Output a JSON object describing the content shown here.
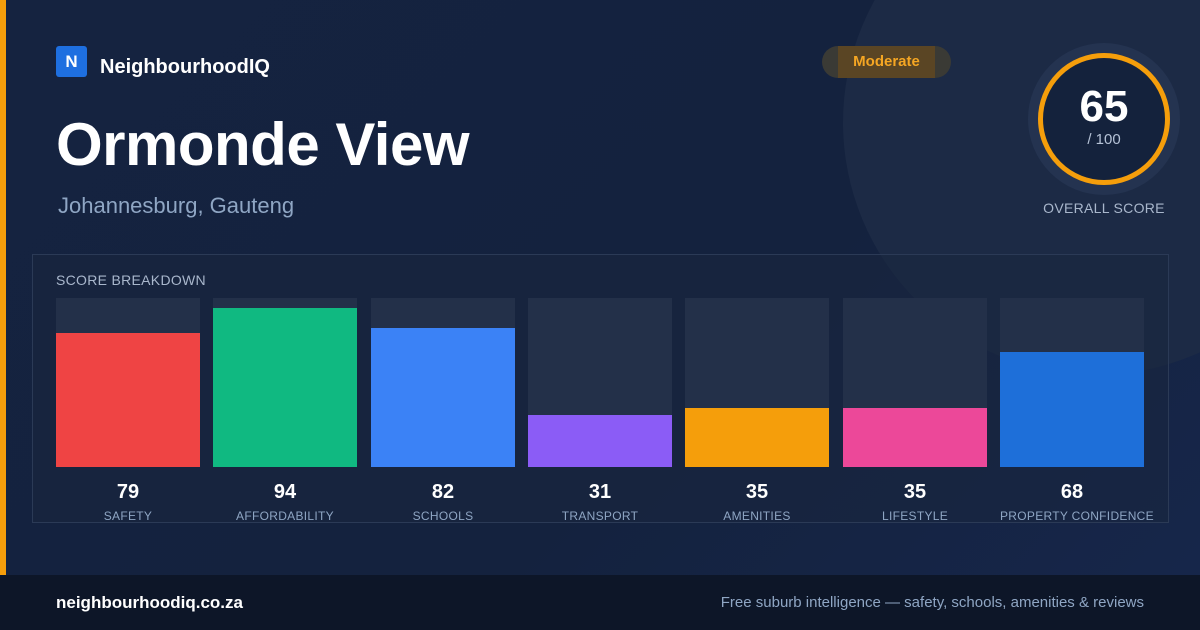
{
  "brand": {
    "logo_letter": "N",
    "name": "NeighbourhoodIQ"
  },
  "suburb": {
    "name": "Ormonde View",
    "location": "Johannesburg, Gauteng"
  },
  "badge": {
    "label": "Moderate",
    "color": "#f5a623"
  },
  "overall": {
    "score": "65",
    "max": "/ 100",
    "caption": "OVERALL SCORE",
    "ring_color": "#f59e0b"
  },
  "breakdown": {
    "title": "SCORE BREAKDOWN",
    "max": 100,
    "items": [
      {
        "label": "SAFETY",
        "value": 79,
        "color": "#ef4444"
      },
      {
        "label": "AFFORDABILITY",
        "value": 94,
        "color": "#10b981"
      },
      {
        "label": "SCHOOLS",
        "value": 82,
        "color": "#3b82f6"
      },
      {
        "label": "TRANSPORT",
        "value": 31,
        "color": "#8b5cf6"
      },
      {
        "label": "AMENITIES",
        "value": 35,
        "color": "#f59e0b"
      },
      {
        "label": "LIFESTYLE",
        "value": 35,
        "color": "#ec4899"
      },
      {
        "label": "PROPERTY CONFIDENCE",
        "value": 68,
        "color": "#1e6fd9"
      }
    ]
  },
  "footer": {
    "url": "neighbourhoodiq.co.za",
    "tagline": "Free suburb intelligence — safety, schools, amenities & reviews"
  },
  "colors": {
    "accent": "#f59e0b",
    "brand_blue": "#1e6fe0",
    "background": "#13203a"
  }
}
